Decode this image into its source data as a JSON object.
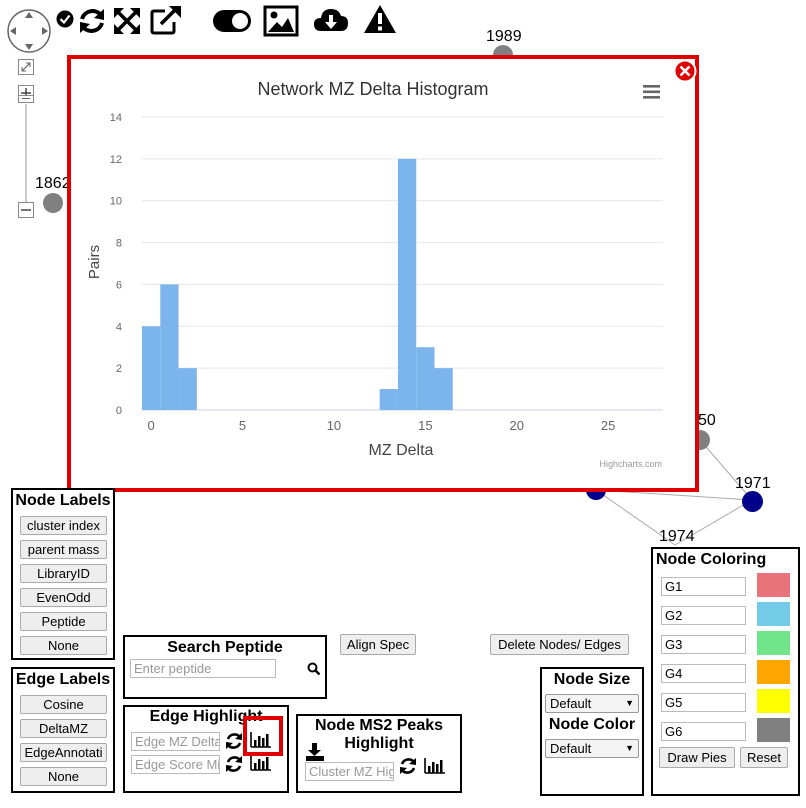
{
  "colors": {
    "accent_red": "#e00000",
    "bar_blue": "#7cb5ec",
    "node_gray": "#808080",
    "node_blue": "#00008b"
  },
  "toolbar": {
    "icons": [
      "pan-navigator-icon",
      "check-circle-icon",
      "refresh-icon",
      "fullscreen-icon",
      "external-link-icon",
      "toggle-icon",
      "image-icon",
      "cloud-download-icon",
      "warning-icon"
    ]
  },
  "graph": {
    "node_labels": [
      "1989",
      "1862",
      "50",
      "1971",
      "1974"
    ]
  },
  "modal": {
    "chart_title": "Network MZ Delta Histogram",
    "credits": "Highcharts.com"
  },
  "chart_data": {
    "type": "bar",
    "title": "Network MZ Delta Histogram",
    "xlabel": "MZ Delta",
    "ylabel": "Pairs",
    "xlim": [
      -0.5,
      28
    ],
    "ylim": [
      0,
      14
    ],
    "x_ticks": [
      0,
      5,
      10,
      15,
      20,
      25
    ],
    "y_ticks": [
      0,
      2,
      4,
      6,
      8,
      10,
      12,
      14
    ],
    "bin_width": 1,
    "bins": [
      {
        "x": 0,
        "value": 4
      },
      {
        "x": 1,
        "value": 6
      },
      {
        "x": 2,
        "value": 2
      },
      {
        "x": 13,
        "value": 1
      },
      {
        "x": 14,
        "value": 12
      },
      {
        "x": 15,
        "value": 3
      },
      {
        "x": 16,
        "value": 2
      }
    ],
    "legend": "none",
    "grid": true
  },
  "node_labels_panel": {
    "title": "Node Labels",
    "buttons": [
      "cluster index",
      "parent mass",
      "LibraryID",
      "EvenOdd",
      "Peptide",
      "None"
    ]
  },
  "edge_labels_panel": {
    "title": "Edge Labels",
    "buttons": [
      "Cosine",
      "DeltaMZ",
      "EdgeAnnotati",
      "None"
    ]
  },
  "search_peptide": {
    "title": "Search Peptide",
    "placeholder": "Enter peptide"
  },
  "align_spec_label": "Align Spec",
  "delete_label": "Delete Nodes/ Edges",
  "edge_highlight": {
    "title": "Edge Highlight",
    "mz_placeholder": "Edge MZ Delta",
    "score_placeholder": "Edge Score Mi"
  },
  "ms2_highlight": {
    "title_line1": "Node MS2 Peaks",
    "title_line2": "Highlight",
    "placeholder": "Cluster MZ Hig"
  },
  "node_size_panel": {
    "size_title": "Node Size",
    "size_value": "Default",
    "color_title": "Node Color",
    "color_value": "Default"
  },
  "node_coloring": {
    "title": "Node Coloring",
    "groups": [
      {
        "label": "G1",
        "color": "#e8737a"
      },
      {
        "label": "G2",
        "color": "#74cbe8"
      },
      {
        "label": "G3",
        "color": "#72e48a"
      },
      {
        "label": "G4",
        "color": "#ffa500"
      },
      {
        "label": "G5",
        "color": "#ffff00"
      },
      {
        "label": "G6",
        "color": "#808080"
      }
    ],
    "draw_pies_label": "Draw Pies",
    "reset_label": "Reset"
  }
}
